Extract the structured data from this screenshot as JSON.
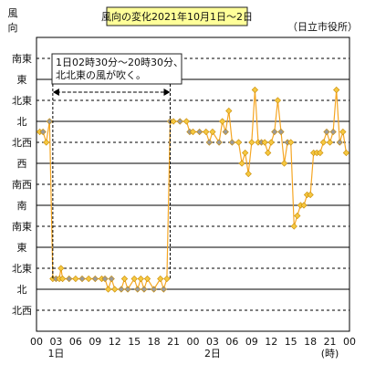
{
  "chart_data": {
    "type": "line",
    "title": "風向の変化2021年10月1日～2日",
    "source": "（日立市役所）",
    "ylabel_top": "風",
    "ylabel_bottom": "向",
    "y_categories": [
      "北西",
      "北",
      "北東",
      "東",
      "南東",
      "南",
      "南西",
      "西",
      "北西",
      "北",
      "北東",
      "東",
      "南東"
    ],
    "x_ticks": [
      "00",
      "03",
      "06",
      "09",
      "12",
      "15",
      "18",
      "21",
      "00",
      "03",
      "06",
      "09",
      "12",
      "15",
      "18",
      "21",
      "00"
    ],
    "x_sublabels": [
      {
        "at": 1,
        "text": "1日"
      },
      {
        "at": 9,
        "text": "2日"
      }
    ],
    "x_unit": "(時)",
    "annotation": {
      "lines": [
        "1日02時30分～20時30分、",
        "北北東の風が吹く。"
      ],
      "from_hour": 2.5,
      "to_hour": 20.5
    },
    "series": [
      {
        "values": [
          [
            0.5,
            8.5
          ],
          [
            1.0,
            8.5
          ],
          [
            1.5,
            8.0
          ],
          [
            2.0,
            9.0
          ],
          [
            2.5,
            1.5
          ],
          [
            3.0,
            1.5
          ],
          [
            3.5,
            1.5
          ],
          [
            3.75,
            2.0
          ],
          [
            4.0,
            1.5
          ],
          [
            5.0,
            1.5
          ],
          [
            6.0,
            1.5
          ],
          [
            7.0,
            1.5
          ],
          [
            8.0,
            1.5
          ],
          [
            9.0,
            1.5
          ],
          [
            10.0,
            1.5
          ],
          [
            10.5,
            1.5
          ],
          [
            11.0,
            1.0
          ],
          [
            11.5,
            1.5
          ],
          [
            12.0,
            1.0
          ],
          [
            13.0,
            1.0
          ],
          [
            13.5,
            1.5
          ],
          [
            14.0,
            1.0
          ],
          [
            15.0,
            1.5
          ],
          [
            15.5,
            1.0
          ],
          [
            16.0,
            1.5
          ],
          [
            16.5,
            1.0
          ],
          [
            17.0,
            1.5
          ],
          [
            18.0,
            1.0
          ],
          [
            19.0,
            1.5
          ],
          [
            19.5,
            1.0
          ],
          [
            20.0,
            1.5
          ],
          [
            20.5,
            9.0
          ],
          [
            21.0,
            9.0
          ],
          [
            22.0,
            9.0
          ],
          [
            23.0,
            9.0
          ],
          [
            23.5,
            8.5
          ],
          [
            24.0,
            8.5
          ],
          [
            25.0,
            8.5
          ],
          [
            26.0,
            8.5
          ],
          [
            26.5,
            8.0
          ],
          [
            27.0,
            8.5
          ],
          [
            28.0,
            8.0
          ],
          [
            28.5,
            9.0
          ],
          [
            29.0,
            8.5
          ],
          [
            29.5,
            9.5
          ],
          [
            30.0,
            8.0
          ],
          [
            31.0,
            8.0
          ],
          [
            31.5,
            7.0
          ],
          [
            32.0,
            7.5
          ],
          [
            32.5,
            6.5
          ],
          [
            33.0,
            8.0
          ],
          [
            33.5,
            10.5
          ],
          [
            34.0,
            8.0
          ],
          [
            34.5,
            8.0
          ],
          [
            35.0,
            8.0
          ],
          [
            35.5,
            7.5
          ],
          [
            36.0,
            8.0
          ],
          [
            36.5,
            8.5
          ],
          [
            37.0,
            10.0
          ],
          [
            37.5,
            8.5
          ],
          [
            38.0,
            7.0
          ],
          [
            38.5,
            8.0
          ],
          [
            39.0,
            8.0
          ],
          [
            39.5,
            4.0
          ],
          [
            40.0,
            4.5
          ],
          [
            40.5,
            5.0
          ],
          [
            41.0,
            5.0
          ],
          [
            41.5,
            5.5
          ],
          [
            42.0,
            5.5
          ],
          [
            42.5,
            7.5
          ],
          [
            43.0,
            7.5
          ],
          [
            43.5,
            7.5
          ],
          [
            44.0,
            8.0
          ],
          [
            44.5,
            8.5
          ],
          [
            45.0,
            8.0
          ],
          [
            45.5,
            8.5
          ],
          [
            46.0,
            10.5
          ],
          [
            46.5,
            8.0
          ],
          [
            47.0,
            8.5
          ],
          [
            47.5,
            7.5
          ]
        ]
      }
    ],
    "colors": {
      "line": "#f5a623",
      "marker_fill": "#f5c842",
      "marker_fill_alt": "#9a9a9a",
      "marker_stroke": "#c98a00",
      "grid": "#000000",
      "title_bg": "#ffff99"
    }
  }
}
